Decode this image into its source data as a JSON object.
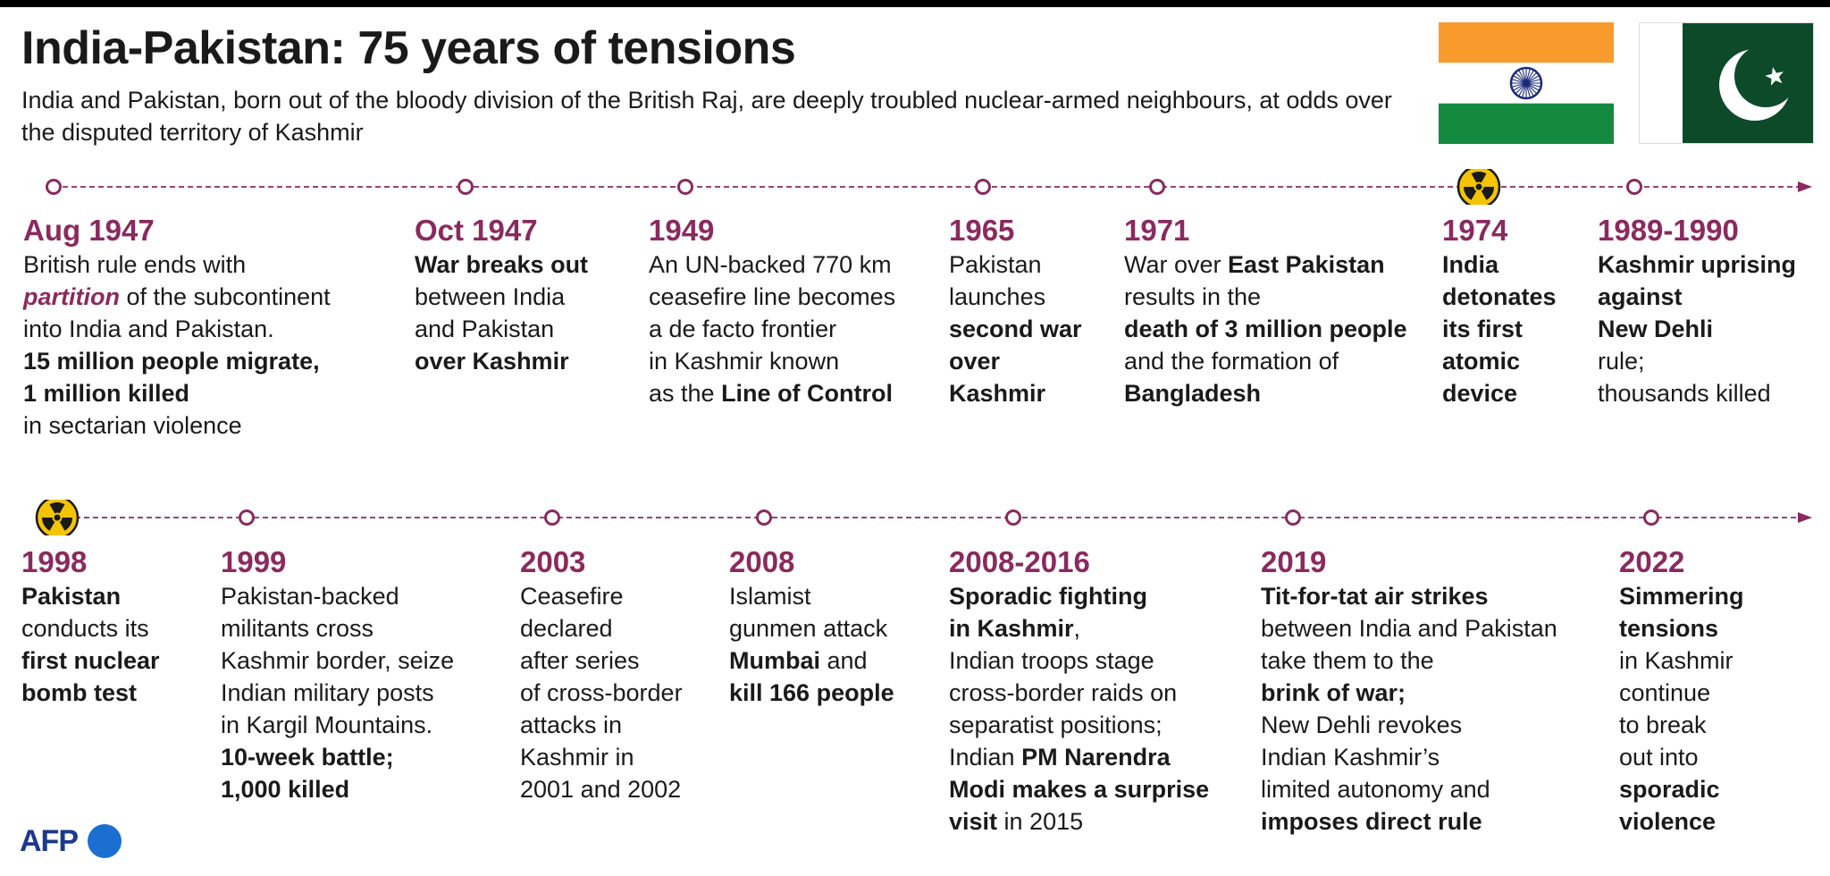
{
  "header": {
    "title": "India-Pakistan: 75 years of tensions",
    "subtitle": "India and Pakistan, born out of the bloody division of the British Raj, are deeply troubled nuclear-armed neighbours, at odds over the disputed territory of Kashmir"
  },
  "flags": [
    {
      "country": "India",
      "icon": "india-flag-icon"
    },
    {
      "country": "Pakistan",
      "icon": "pakistan-flag-icon"
    }
  ],
  "colors": {
    "accent": "#8a2a5e",
    "text": "#1a1a1a",
    "india_saffron": "#f89a2c",
    "india_green": "#138a3e",
    "india_chakra": "#1a2a7a",
    "pakistan_green": "#0d4a2a",
    "nuclear_yellow": "#f5c400",
    "afp_blue": "#1a6fd1"
  },
  "row1": [
    {
      "year": "Aug 1947",
      "lines": [
        [
          {
            "t": "British rule ends with"
          }
        ],
        [
          {
            "t": "partition",
            "s": "accent"
          },
          {
            "t": " of the subcontinent"
          }
        ],
        [
          {
            "t": "into India and Pakistan."
          }
        ],
        [
          {
            "t": "15 million people migrate,",
            "s": "b"
          }
        ],
        [
          {
            "t": "1 million killed",
            "s": "b"
          }
        ],
        [
          {
            "t": "in sectarian violence"
          }
        ]
      ]
    },
    {
      "year": "Oct 1947",
      "lines": [
        [
          {
            "t": "War breaks out",
            "s": "b"
          }
        ],
        [
          {
            "t": "between India"
          }
        ],
        [
          {
            "t": "and Pakistan"
          }
        ],
        [
          {
            "t": "over Kashmir",
            "s": "b"
          }
        ]
      ]
    },
    {
      "year": "1949",
      "lines": [
        [
          {
            "t": "An UN-backed 770 km"
          }
        ],
        [
          {
            "t": "ceasefire line becomes"
          }
        ],
        [
          {
            "t": "a de facto frontier"
          }
        ],
        [
          {
            "t": "in Kashmir known"
          }
        ],
        [
          {
            "t": "as the "
          },
          {
            "t": "Line of Control",
            "s": "b"
          }
        ]
      ]
    },
    {
      "year": "1965",
      "lines": [
        [
          {
            "t": "Pakistan"
          }
        ],
        [
          {
            "t": "launches"
          }
        ],
        [
          {
            "t": "second war",
            "s": "b"
          }
        ],
        [
          {
            "t": "over",
            "s": "b"
          }
        ],
        [
          {
            "t": "Kashmir",
            "s": "b"
          }
        ]
      ]
    },
    {
      "year": "1971",
      "lines": [
        [
          {
            "t": "War over "
          },
          {
            "t": "East Pakistan",
            "s": "b"
          }
        ],
        [
          {
            "t": "results in the"
          }
        ],
        [
          {
            "t": "death of 3 million people",
            "s": "b"
          }
        ],
        [
          {
            "t": "and the formation of"
          }
        ],
        [
          {
            "t": "Bangladesh",
            "s": "b"
          }
        ]
      ]
    },
    {
      "year": "1974",
      "nuclear": true,
      "lines": [
        [
          {
            "t": "India",
            "s": "b"
          }
        ],
        [
          {
            "t": "detonates",
            "s": "b"
          }
        ],
        [
          {
            "t": "its first",
            "s": "b"
          }
        ],
        [
          {
            "t": "atomic",
            "s": "b"
          }
        ],
        [
          {
            "t": "device",
            "s": "b"
          }
        ]
      ]
    },
    {
      "year": "1989-1990",
      "lines": [
        [
          {
            "t": "Kashmir uprising",
            "s": "b"
          }
        ],
        [
          {
            "t": "against",
            "s": "b"
          }
        ],
        [
          {
            "t": "New Dehli",
            "s": "b"
          }
        ],
        [
          {
            "t": "rule;"
          }
        ],
        [
          {
            "t": "thousands killed"
          }
        ]
      ]
    }
  ],
  "row2": [
    {
      "year": "1998",
      "nuclear": true,
      "lines": [
        [
          {
            "t": "Pakistan",
            "s": "b"
          }
        ],
        [
          {
            "t": "conducts its"
          }
        ],
        [
          {
            "t": "first nuclear",
            "s": "b"
          }
        ],
        [
          {
            "t": "bomb test",
            "s": "b"
          }
        ]
      ]
    },
    {
      "year": "1999",
      "lines": [
        [
          {
            "t": "Pakistan-backed"
          }
        ],
        [
          {
            "t": "militants cross"
          }
        ],
        [
          {
            "t": "Kashmir border, seize"
          }
        ],
        [
          {
            "t": "Indian military posts"
          }
        ],
        [
          {
            "t": "in Kargil Mountains."
          }
        ],
        [
          {
            "t": "10-week battle;",
            "s": "b"
          }
        ],
        [
          {
            "t": "1,000 killed",
            "s": "b"
          }
        ]
      ]
    },
    {
      "year": "2003",
      "lines": [
        [
          {
            "t": "Ceasefire"
          }
        ],
        [
          {
            "t": "declared"
          }
        ],
        [
          {
            "t": "after series"
          }
        ],
        [
          {
            "t": "of cross-border"
          }
        ],
        [
          {
            "t": "attacks in"
          }
        ],
        [
          {
            "t": "Kashmir in"
          }
        ],
        [
          {
            "t": "2001 and 2002"
          }
        ]
      ]
    },
    {
      "year": "2008",
      "lines": [
        [
          {
            "t": "Islamist"
          }
        ],
        [
          {
            "t": "gunmen attack"
          }
        ],
        [
          {
            "t": "Mumbai",
            "s": "b"
          },
          {
            "t": " and"
          }
        ],
        [
          {
            "t": "kill 166 people",
            "s": "b"
          }
        ]
      ]
    },
    {
      "year": "2008-2016",
      "lines": [
        [
          {
            "t": "Sporadic fighting",
            "s": "b"
          }
        ],
        [
          {
            "t": "in Kashmir",
            "s": "b"
          },
          {
            "t": ","
          }
        ],
        [
          {
            "t": "Indian troops stage"
          }
        ],
        [
          {
            "t": "cross-border raids on"
          }
        ],
        [
          {
            "t": "separatist positions;"
          }
        ],
        [
          {
            "t": "Indian "
          },
          {
            "t": "PM Narendra",
            "s": "b"
          }
        ],
        [
          {
            "t": "Modi makes a surprise",
            "s": "b"
          }
        ],
        [
          {
            "t": "visit",
            "s": "b"
          },
          {
            "t": " in 2015"
          }
        ]
      ]
    },
    {
      "year": "2019",
      "lines": [
        [
          {
            "t": "Tit-for-tat air strikes",
            "s": "b"
          }
        ],
        [
          {
            "t": "between India and Pakistan"
          }
        ],
        [
          {
            "t": "take them to the"
          }
        ],
        [
          {
            "t": "brink of war;",
            "s": "b"
          }
        ],
        [
          {
            "t": "New Dehli revokes"
          }
        ],
        [
          {
            "t": "Indian Kashmir’s"
          }
        ],
        [
          {
            "t": "limited autonomy and"
          }
        ],
        [
          {
            "t": "imposes direct rule",
            "s": "b"
          }
        ]
      ]
    },
    {
      "year": "2022",
      "lines": [
        [
          {
            "t": "Simmering",
            "s": "b"
          }
        ],
        [
          {
            "t": "tensions",
            "s": "b"
          }
        ],
        [
          {
            "t": "in Kashmir"
          }
        ],
        [
          {
            "t": "continue"
          }
        ],
        [
          {
            "t": "to break"
          }
        ],
        [
          {
            "t": "out into"
          }
        ],
        [
          {
            "t": "sporadic",
            "s": "b"
          }
        ],
        [
          {
            "t": "violence",
            "s": "b"
          }
        ]
      ]
    }
  ],
  "credit": {
    "logo_text": "AFP",
    "icon": "afp-logo-icon"
  }
}
